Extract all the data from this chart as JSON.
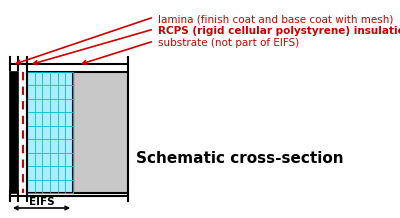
{
  "bg_color": "#ffffff",
  "title": "Schematic cross-section",
  "title_fontsize": 11,
  "title_fontweight": "bold",
  "title_color": "#000000",
  "eifs_label": "EIFS",
  "eifs_fontsize": 7.5,
  "annotations": [
    {
      "text": "lamina (finish coat and base coat with mesh)",
      "color": "#cc0000",
      "fontsize": 7.5,
      "bold": false
    },
    {
      "text": "RCPS (rigid cellular polystyrene) insulation",
      "color": "#cc0000",
      "fontsize": 7.5,
      "bold": true
    },
    {
      "text": "substrate (not part of EIFS)",
      "color": "#cc0000",
      "fontsize": 7.5,
      "bold": false
    }
  ],
  "insulation_fill": "#aaeeff",
  "grid_color": "#00bbdd",
  "substrate_fill": "#c8c8c8",
  "black": "#000000",
  "red": "#cc0000"
}
